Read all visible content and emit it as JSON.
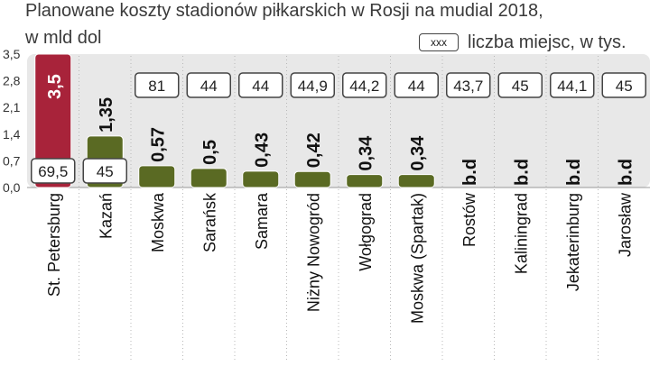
{
  "title_line1": "Planowane koszty stadionów piłkarskich w Rosji na mudial 2018,",
  "title_line2": "w mld dol",
  "legend": {
    "box_text": "xxx",
    "label": "liczba miejsc, w tys."
  },
  "colors": {
    "highlight_bar": "#a8233a",
    "bar": "#5a6a23",
    "panel": "#e8e8e8",
    "box_border": "#444444"
  },
  "chart_data": {
    "type": "bar",
    "title": "Planowane koszty stadionów piłkarskich w Rosji na mudial 2018, w mld dol",
    "categories": [
      "St. Petersburg",
      "Kazań",
      "Moskwa",
      "Sarańsk",
      "Samara",
      "Niżny Nowogród",
      "Wołgograd",
      "Moskwa (Spartak)",
      "Rostów",
      "Kaliningrad",
      "Jekaterinburg",
      "Jarosław"
    ],
    "values": [
      3.5,
      1.35,
      0.57,
      0.5,
      0.43,
      0.42,
      0.34,
      0.34,
      null,
      null,
      null,
      null
    ],
    "value_labels": [
      "3,5",
      "1,35",
      "0,57",
      "0,5",
      "0,43",
      "0,42",
      "0,34",
      "0,34",
      "b.d",
      "b.d",
      "b.d",
      "b.d"
    ],
    "capacity_labels": [
      "69,5",
      "45",
      "81",
      "44",
      "44",
      "44,9",
      "44,2",
      "44",
      "43,7",
      "45",
      "44,1",
      "45"
    ],
    "y_ticks": [
      "3,5",
      "2,8",
      "2,1",
      "1,4",
      "0,7",
      "0,0"
    ],
    "y_tick_values": [
      3.5,
      2.8,
      2.1,
      1.4,
      0.7,
      0.0
    ],
    "ylim": [
      0,
      3.5
    ],
    "highlight_index": 0
  }
}
